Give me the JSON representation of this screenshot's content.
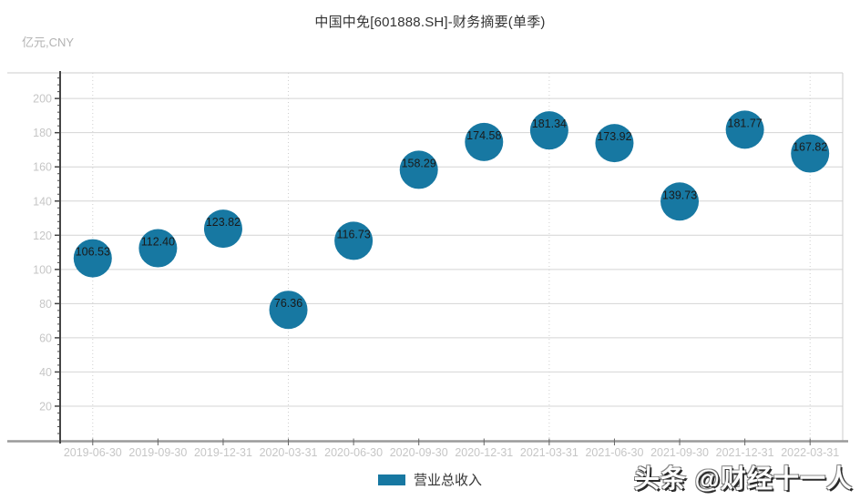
{
  "header": {
    "title": "中国中免[601888.SH]-财务摘要(单季)",
    "unit_label": "亿元,CNY"
  },
  "legend": {
    "series_label": "营业总收入"
  },
  "watermark": {
    "text": "头条 @财经十一人"
  },
  "colors": {
    "accent": "#1778a2",
    "grid": "#d4d4d4",
    "axis_text": "#c6c6c6",
    "axis_line": "#454545",
    "baseline": "#9a9a9a",
    "border": "#cccccc",
    "dotted": "#cfcfcf",
    "point_label": "#1a1a1a",
    "x_tick": "#666666"
  },
  "chart_data": {
    "type": "scatter",
    "title": "中国中免[601888.SH]-财务摘要(单季)",
    "ylabel": "亿元,CNY",
    "series_name": "营业总收入",
    "categories": [
      "2019-06-30",
      "2019-09-30",
      "2019-12-31",
      "2020-03-31",
      "2020-06-30",
      "2020-09-30",
      "2020-12-31",
      "2021-03-31",
      "2021-06-30",
      "2021-09-30",
      "2021-12-31",
      "2022-03-31"
    ],
    "values": [
      106.53,
      112.4,
      123.82,
      76.36,
      116.73,
      158.29,
      174.58,
      181.34,
      173.92,
      139.73,
      181.77,
      167.82
    ],
    "point_labels": [
      "106.53",
      "112.40",
      "123.82",
      "76.36",
      "116.73",
      "158.29",
      "174.58",
      "181.34",
      "173.92",
      "139.73",
      "181.77",
      "167.82"
    ],
    "ylim": [
      0,
      215
    ],
    "ytick_step": 20,
    "ytick_minor_step": 4,
    "grid": true,
    "legend_position": "bottom",
    "year_split_indices": [
      0,
      3,
      7,
      11
    ]
  }
}
